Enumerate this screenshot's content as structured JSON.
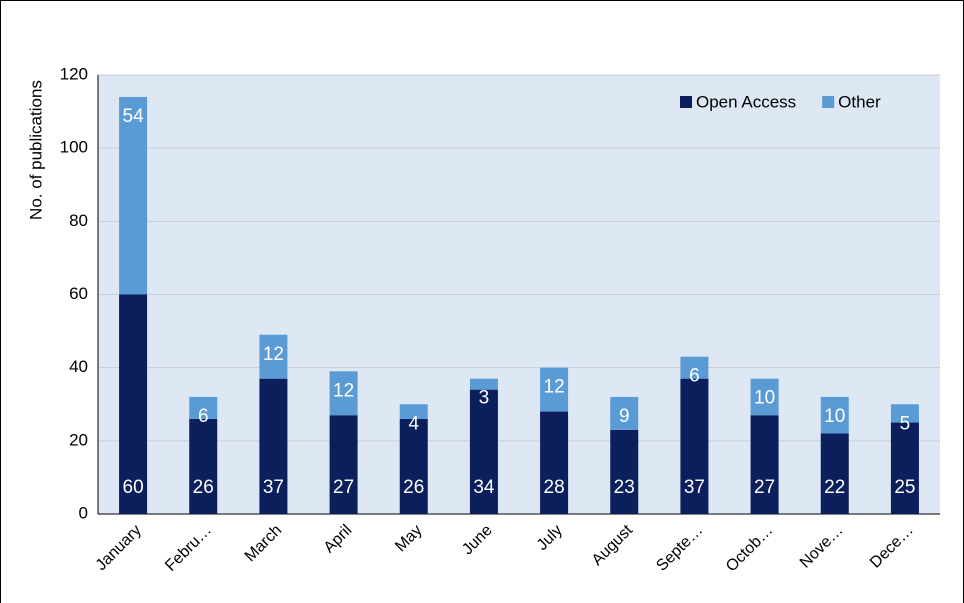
{
  "chart_data": {
    "type": "stacked_bar",
    "y_label": "No. of publications",
    "categories": [
      "January",
      "Febru…",
      "March",
      "April",
      "May",
      "June",
      "July",
      "August",
      "Septe…",
      "Octob…",
      "Nove…",
      "Dece…"
    ],
    "series": [
      {
        "name": "Open Access",
        "color": "#0a1f5c",
        "values": [
          60,
          26,
          37,
          27,
          26,
          34,
          28,
          23,
          37,
          27,
          22,
          25
        ]
      },
      {
        "name": "Other",
        "color": "#5b9bd5",
        "values": [
          54,
          6,
          12,
          12,
          4,
          3,
          12,
          9,
          6,
          10,
          10,
          5
        ]
      }
    ],
    "ylim": [
      0,
      120
    ],
    "yticks": [
      0,
      20,
      40,
      60,
      80,
      100,
      120
    ],
    "grid": true,
    "legend": "top-right"
  }
}
